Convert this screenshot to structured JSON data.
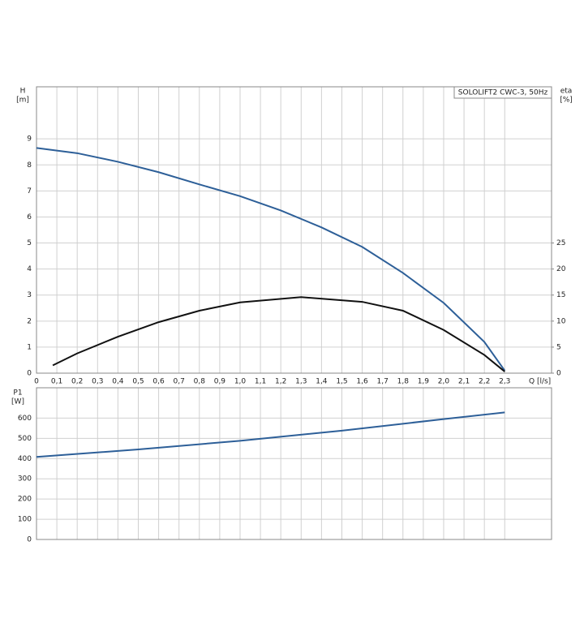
{
  "chart_data": [
    {
      "type": "line",
      "title": "SOLOLIFT2 CWC-3, 50Hz",
      "ylabel": "H",
      "yunit": "[m]",
      "y2label": "eta",
      "y2unit": "[%]",
      "xlabel": "Q [l/s]",
      "xlim": [
        0,
        2.53
      ],
      "xticks": [
        0,
        {
          "value": 0.1,
          "label": "0,1"
        },
        {
          "value": 0.2,
          "label": "0,2"
        },
        {
          "value": 0.3,
          "label": "0,3"
        },
        {
          "value": 0.4,
          "label": "0,4"
        },
        {
          "value": 0.5,
          "label": "0,5"
        },
        {
          "value": 0.6,
          "label": "0,6"
        },
        {
          "value": 0.7,
          "label": "0,7"
        },
        {
          "value": 0.8,
          "label": "0,8"
        },
        {
          "value": 0.9,
          "label": "0,9"
        },
        {
          "value": 1.0,
          "label": "1,0"
        },
        {
          "value": 1.1,
          "label": "1,1"
        },
        {
          "value": 1.2,
          "label": "1,2"
        },
        {
          "value": 1.3,
          "label": "1,3"
        },
        {
          "value": 1.4,
          "label": "1,4"
        },
        {
          "value": 1.5,
          "label": "1,5"
        },
        {
          "value": 1.6,
          "label": "1,6"
        },
        {
          "value": 1.7,
          "label": "1,7"
        },
        {
          "value": 1.8,
          "label": "1,8"
        },
        {
          "value": 1.9,
          "label": "1,9"
        },
        {
          "value": 2.0,
          "label": "2,0"
        },
        {
          "value": 2.1,
          "label": "2,1"
        },
        {
          "value": 2.2,
          "label": "2,2"
        },
        {
          "value": 2.3,
          "label": "2,3"
        }
      ],
      "ylim": [
        0,
        11
      ],
      "yticks": [
        0,
        1,
        2,
        3,
        4,
        5,
        6,
        7,
        8,
        9
      ],
      "y2lim": [
        0,
        55
      ],
      "y2ticks": [
        0,
        5,
        10,
        15,
        20,
        25
      ],
      "grid": true,
      "series": [
        {
          "color": "#2d5f98",
          "x": [
            0,
            0.2,
            0.4,
            0.6,
            0.8,
            1.0,
            1.2,
            1.4,
            1.6,
            1.8,
            2.0,
            2.2,
            2.3
          ],
          "values": [
            8.65,
            8.45,
            8.12,
            7.72,
            7.25,
            6.8,
            6.25,
            5.6,
            4.85,
            3.85,
            2.7,
            1.2,
            0.1
          ]
        },
        {
          "color": "#111111",
          "axis": "y2",
          "x": [
            0.08,
            0.2,
            0.4,
            0.6,
            0.8,
            1.0,
            1.3,
            1.6,
            1.8,
            2.0,
            2.2,
            2.3
          ],
          "values": [
            1.5,
            3.8,
            7,
            9.8,
            12,
            13.6,
            14.6,
            13.7,
            12,
            8.3,
            3.5,
            0.3
          ]
        }
      ]
    },
    {
      "type": "line",
      "ylabel": "P1",
      "yunit": "[W]",
      "xlim": [
        0,
        2.53
      ],
      "ylim": [
        0,
        750
      ],
      "yticks": [
        0,
        100,
        200,
        300,
        400,
        500,
        600
      ],
      "grid": true,
      "series": [
        {
          "color": "#2d5f98",
          "x": [
            0,
            0.5,
            1.0,
            1.5,
            2.0,
            2.3
          ],
          "values": [
            408,
            445,
            488,
            538,
            595,
            628
          ]
        }
      ]
    }
  ]
}
